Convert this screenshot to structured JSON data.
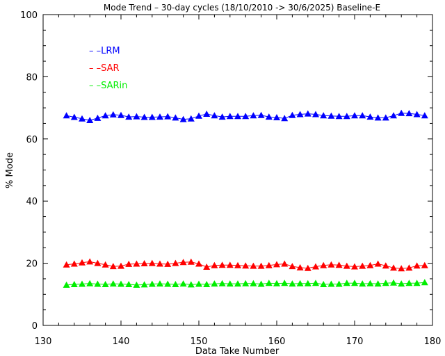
{
  "chart_data": {
    "type": "line",
    "title": "Mode Trend – 30-day cycles (18/10/2010 -> 30/6/2025) Baseline-E",
    "xlabel": "Data Take Number",
    "ylabel": "% Mode",
    "xlim": [
      130,
      180
    ],
    "ylim": [
      0,
      100
    ],
    "x_ticks": [
      130,
      140,
      150,
      160,
      170,
      180
    ],
    "y_ticks": [
      0,
      20,
      40,
      60,
      80,
      100
    ],
    "x_tick_labels": [
      "130",
      "140",
      "150",
      "160",
      "170",
      "180"
    ],
    "y_tick_labels": [
      "0",
      "20",
      "40",
      "60",
      "80",
      "100"
    ],
    "grid": false,
    "legend_position": "top-left",
    "marker": "triangle",
    "x": [
      133,
      134,
      135,
      136,
      137,
      138,
      139,
      140,
      141,
      142,
      143,
      144,
      145,
      146,
      147,
      148,
      149,
      150,
      151,
      152,
      153,
      154,
      155,
      156,
      157,
      158,
      159,
      160,
      161,
      162,
      163,
      164,
      165,
      166,
      167,
      168,
      169,
      170,
      171,
      172,
      173,
      174,
      175,
      176,
      177,
      178,
      179
    ],
    "series": [
      {
        "name": "LRM",
        "legend_label": "– –LRM",
        "color": "#0000ff",
        "values": [
          67.5,
          67.0,
          66.5,
          66.0,
          66.7,
          67.5,
          67.8,
          67.6,
          67.1,
          67.2,
          67.0,
          67.0,
          67.1,
          67.2,
          66.8,
          66.3,
          66.5,
          67.4,
          68.0,
          67.5,
          67.1,
          67.3,
          67.3,
          67.3,
          67.5,
          67.6,
          67.1,
          66.9,
          66.6,
          67.6,
          67.9,
          68.1,
          67.9,
          67.5,
          67.4,
          67.3,
          67.3,
          67.5,
          67.5,
          67.1,
          66.8,
          66.8,
          67.5,
          68.3,
          68.2,
          67.9,
          67.5
        ]
      },
      {
        "name": "SAR",
        "legend_label": "– –SAR",
        "color": "#ff0000",
        "values": [
          19.5,
          19.8,
          20.2,
          20.5,
          20.0,
          19.5,
          19.0,
          19.1,
          19.7,
          19.8,
          19.9,
          20.0,
          19.8,
          19.7,
          20.0,
          20.3,
          20.4,
          19.8,
          18.8,
          19.3,
          19.4,
          19.4,
          19.3,
          19.2,
          19.1,
          19.1,
          19.3,
          19.6,
          19.8,
          19.0,
          18.6,
          18.4,
          18.9,
          19.3,
          19.5,
          19.4,
          19.1,
          18.9,
          19.1,
          19.3,
          19.8,
          19.2,
          18.5,
          18.3,
          18.5,
          19.2,
          19.3
        ]
      },
      {
        "name": "SARin",
        "legend_label": "– –SARin",
        "color": "#00ee00",
        "values": [
          13.0,
          13.2,
          13.3,
          13.5,
          13.3,
          13.2,
          13.4,
          13.3,
          13.2,
          13.0,
          13.1,
          13.3,
          13.4,
          13.3,
          13.2,
          13.4,
          13.1,
          13.3,
          13.2,
          13.4,
          13.5,
          13.4,
          13.4,
          13.5,
          13.5,
          13.3,
          13.6,
          13.5,
          13.6,
          13.4,
          13.5,
          13.5,
          13.6,
          13.2,
          13.3,
          13.3,
          13.6,
          13.6,
          13.4,
          13.5,
          13.4,
          13.6,
          13.7,
          13.4,
          13.6,
          13.6,
          13.8
        ]
      }
    ]
  }
}
